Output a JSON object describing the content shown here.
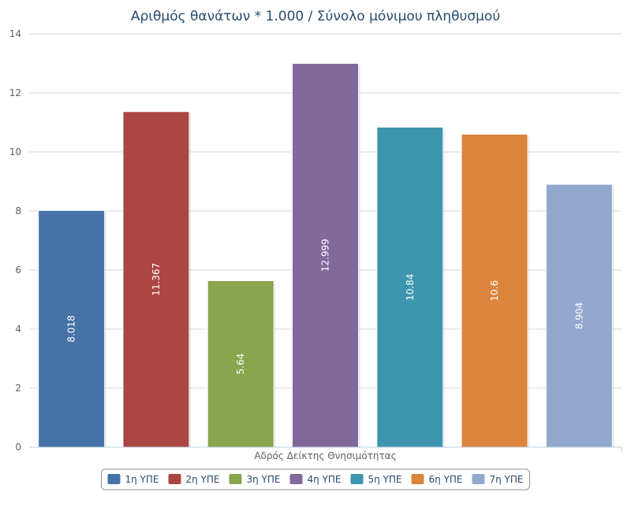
{
  "chart_data": {
    "type": "bar",
    "title": "Αριθμός θανάτων * 1.000 / Σύνολο μόνιμου πληθυσμού",
    "categories": [
      "Αδρός Δείκτης Θνησιμότητας"
    ],
    "series": [
      {
        "name": "1η ΥΠΕ",
        "values": [
          8.018
        ],
        "label": "8.018",
        "color": "#4572a7"
      },
      {
        "name": "2η ΥΠΕ",
        "values": [
          11.367
        ],
        "label": "11.367",
        "color": "#aa4643"
      },
      {
        "name": "3η ΥΠΕ",
        "values": [
          5.64
        ],
        "label": "5.64",
        "color": "#89a54e"
      },
      {
        "name": "4η ΥΠΕ",
        "values": [
          12.999
        ],
        "label": "12.999",
        "color": "#80699b"
      },
      {
        "name": "5η ΥΠΕ",
        "values": [
          10.84
        ],
        "label": "10.84",
        "color": "#3d96ae"
      },
      {
        "name": "6η ΥΠΕ",
        "values": [
          10.6
        ],
        "label": "10.6",
        "color": "#db843d"
      },
      {
        "name": "7η ΥΠΕ",
        "values": [
          8.904
        ],
        "label": "8.904",
        "color": "#92a8cd"
      }
    ],
    "ylim": [
      0,
      14
    ],
    "yticks": [
      0,
      2,
      4,
      6,
      8,
      10,
      12,
      14
    ],
    "grid": true,
    "legend": "bottom-center",
    "data_labels": "inside-rotated"
  }
}
